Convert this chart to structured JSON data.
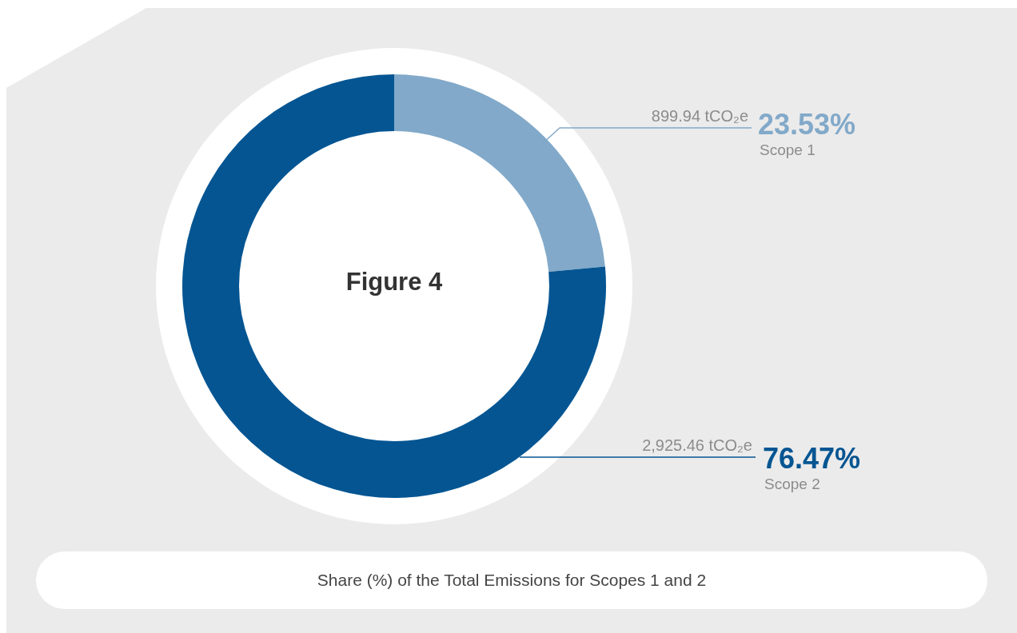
{
  "chart_data": {
    "type": "donut",
    "title": "Figure 4",
    "categories": [
      "Scope 1",
      "Scope 2"
    ],
    "values": [
      23.53,
      76.47
    ],
    "value_labels": [
      "23.53%",
      "76.47%"
    ],
    "colors": [
      "#82a9c9",
      "#045592"
    ],
    "legend": false,
    "annotations": [
      "899.94 tCO₂e",
      "2,925.46 tCO₂e",
      "Share (%) of the Total Emissions for Scopes 1 and 2"
    ]
  }
}
